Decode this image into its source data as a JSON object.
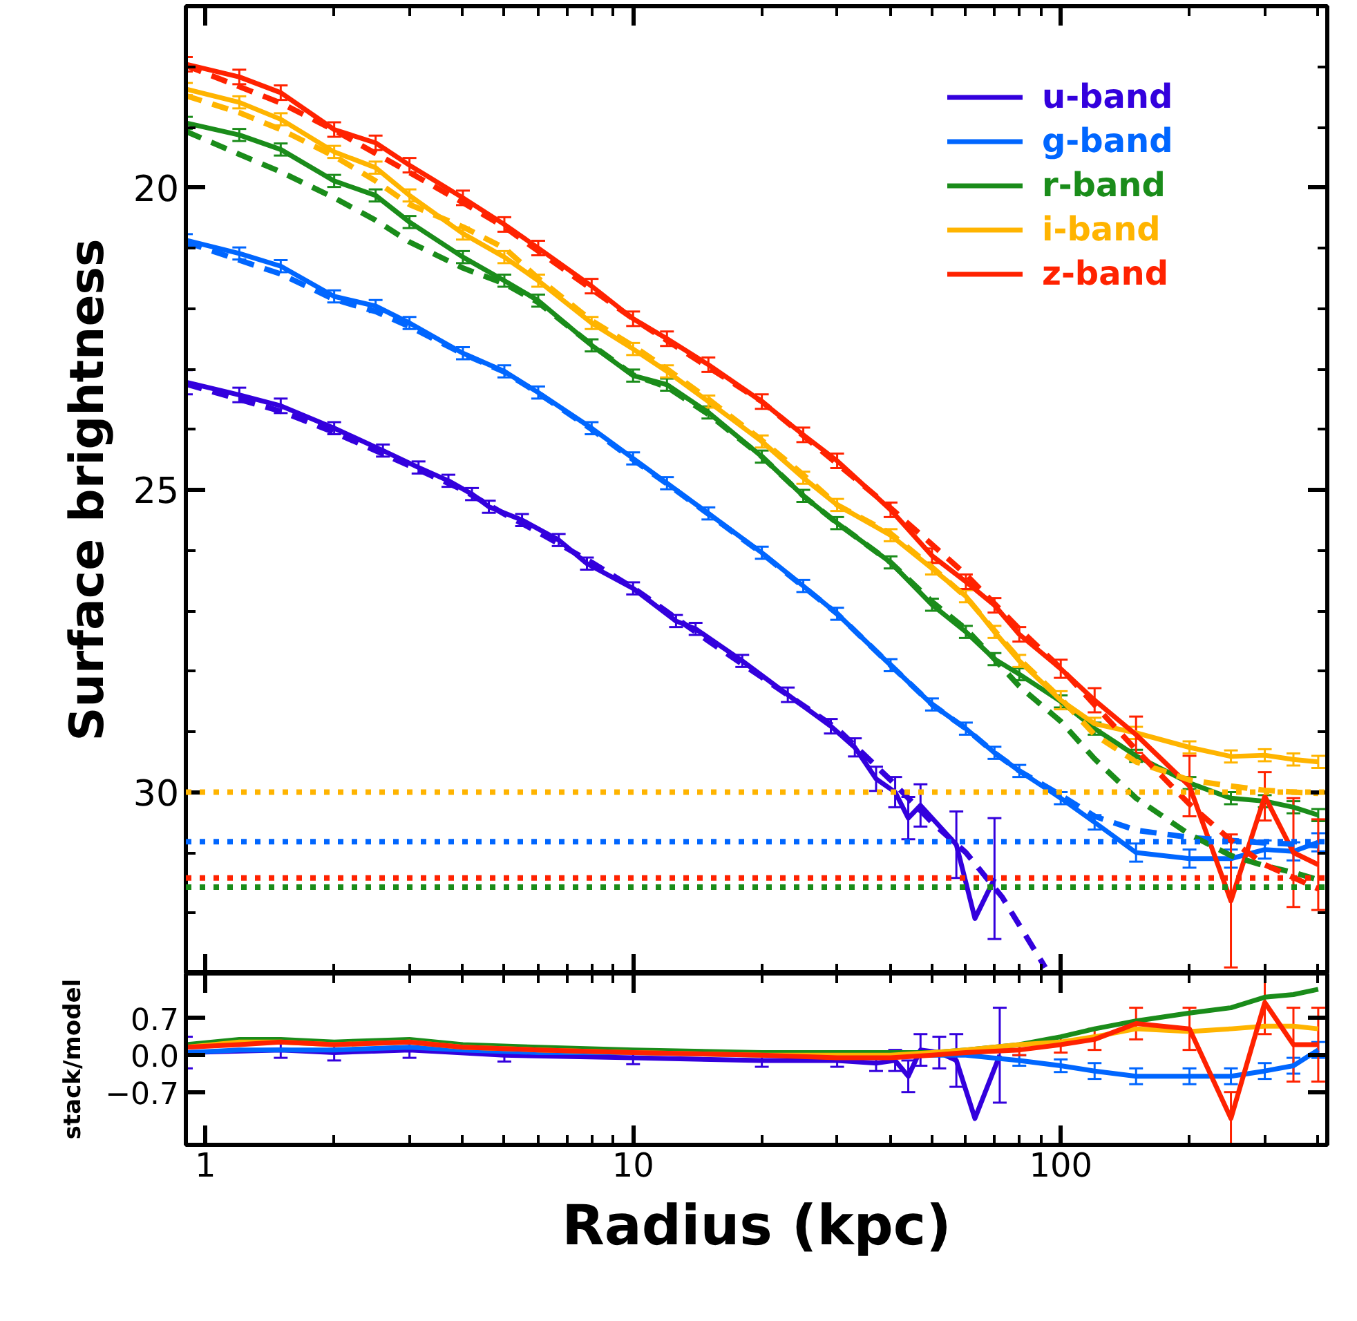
{
  "chart_data": [
    {
      "type": "line",
      "ylabel": "Surface brightness",
      "log": "x",
      "grid": false,
      "legend": "top right",
      "marker": "none",
      "tick_labels": "y",
      "xlim": [
        0.9,
        420
      ],
      "ylim": [
        33,
        17
      ],
      "xticks": [
        1,
        {
          "value": 2,
          "label": null
        },
        {
          "value": 3,
          "label": null
        },
        {
          "value": 4,
          "label": null
        },
        {
          "value": 5,
          "label": null
        },
        {
          "value": 6,
          "label": null
        },
        {
          "value": 7,
          "label": null
        },
        {
          "value": 8,
          "label": null
        },
        {
          "value": 9,
          "label": null
        },
        10,
        {
          "value": 20,
          "label": null
        },
        {
          "value": 30,
          "label": null
        },
        {
          "value": 40,
          "label": null
        },
        {
          "value": 50,
          "label": null
        },
        {
          "value": 60,
          "label": null
        },
        {
          "value": 70,
          "label": null
        },
        {
          "value": 80,
          "label": null
        },
        {
          "value": 90,
          "label": null
        },
        100,
        {
          "value": 200,
          "label": null
        },
        {
          "value": 300,
          "label": null
        },
        {
          "value": 400,
          "label": null
        }
      ],
      "yticks": [
        {
          "value": 18,
          "label": null
        },
        {
          "value": 19,
          "label": null
        },
        20,
        {
          "value": 21,
          "label": null
        },
        {
          "value": 22,
          "label": null
        },
        {
          "value": 23,
          "label": null
        },
        {
          "value": 24,
          "label": null
        },
        25,
        {
          "value": 26,
          "label": null
        },
        {
          "value": 27,
          "label": null
        },
        {
          "value": 28,
          "label": null
        },
        {
          "value": 29,
          "label": null
        },
        30,
        {
          "value": 31,
          "label": null
        },
        {
          "value": 32,
          "label": null
        }
      ],
      "ref_lines": [
        {
          "axis": "y",
          "value": 30.0,
          "color": "#ffb400",
          "line_style": "dotted"
        },
        {
          "axis": "y",
          "value": 30.82,
          "color": "#0066ff",
          "line_style": "dotted"
        },
        {
          "axis": "y",
          "value": 31.42,
          "color": "#ff2200",
          "line_style": "dotted"
        },
        {
          "axis": "y",
          "value": 31.57,
          "color": "#1a8c1a",
          "line_style": "dotted"
        }
      ],
      "series": [
        {
          "name": "u-band",
          "color": "#3300dd",
          "line_style": "solid",
          "x": [
            0.9,
            1.2,
            1.5,
            2,
            2.6,
            3.15,
            3.7,
            4.2,
            4.6,
            5.5,
            6.7,
            7.8,
            10,
            12.6,
            14,
            18,
            23,
            29,
            33,
            37,
            41,
            44,
            47,
            57,
            63,
            70
          ],
          "values": [
            23.22,
            23.43,
            23.61,
            23.98,
            24.35,
            24.63,
            24.85,
            25.07,
            25.28,
            25.5,
            25.83,
            26.22,
            26.63,
            27.17,
            27.3,
            27.83,
            28.39,
            28.91,
            29.26,
            29.78,
            30.0,
            30.43,
            30.22,
            30.87,
            32.09,
            31.43
          ],
          "errors": [
            0.2,
            0.12,
            0.12,
            0.1,
            0.1,
            0.1,
            0.1,
            0.1,
            0.1,
            0.1,
            0.1,
            0.1,
            0.1,
            0.1,
            0.1,
            0.1,
            0.12,
            0.12,
            0.15,
            0.2,
            0.25,
            0.35,
            0.35,
            0.55,
            null,
            1.0
          ]
        },
        {
          "name": "g-band",
          "color": "#0066ff",
          "line_style": "solid",
          "x": [
            0.9,
            1.2,
            1.5,
            2,
            2.5,
            3,
            4,
            5,
            6,
            8,
            10,
            12,
            15,
            20,
            25,
            30,
            40,
            50,
            60,
            70,
            80,
            100,
            120,
            150,
            200,
            250,
            300,
            350,
            400
          ],
          "values": [
            20.87,
            21.09,
            21.3,
            21.8,
            21.96,
            22.24,
            22.74,
            23.04,
            23.39,
            23.98,
            24.48,
            24.89,
            25.39,
            26.04,
            26.59,
            27.05,
            27.9,
            28.55,
            28.95,
            29.35,
            29.65,
            30.1,
            30.5,
            31.0,
            31.1,
            31.1,
            30.95,
            30.98,
            30.83
          ],
          "errors": [
            0.1,
            0.1,
            0.1,
            0.1,
            0.1,
            0.1,
            0.1,
            0.1,
            0.1,
            0.1,
            0.1,
            0.1,
            0.1,
            0.1,
            0.1,
            0.1,
            0.1,
            0.1,
            0.1,
            0.1,
            0.1,
            0.1,
            0.12,
            0.15,
            0.15,
            0.15,
            0.15,
            0.15,
            0.15
          ]
        },
        {
          "name": "r-band",
          "color": "#1a8c1a",
          "line_style": "solid",
          "x": [
            0.9,
            1.2,
            1.5,
            2,
            2.5,
            3,
            4,
            5,
            6,
            8,
            10,
            12,
            15,
            20,
            25,
            30,
            40,
            50,
            60,
            70,
            80,
            100,
            120,
            150,
            200,
            250,
            300,
            350,
            400
          ],
          "values": [
            18.93,
            19.13,
            19.37,
            19.89,
            20.13,
            20.57,
            21.15,
            21.54,
            21.87,
            22.61,
            23.11,
            23.26,
            23.72,
            24.45,
            25.1,
            25.55,
            26.2,
            26.9,
            27.35,
            27.8,
            28.05,
            28.5,
            28.95,
            29.4,
            29.85,
            30.1,
            30.15,
            30.25,
            30.38
          ],
          "errors": [
            0.1,
            0.1,
            0.1,
            0.1,
            0.1,
            0.1,
            0.1,
            0.1,
            0.1,
            0.1,
            0.1,
            0.1,
            0.1,
            0.1,
            0.1,
            0.1,
            0.1,
            0.1,
            0.1,
            0.1,
            0.1,
            0.1,
            0.1,
            0.1,
            0.1,
            0.1,
            0.1,
            0.1,
            0.1
          ]
        },
        {
          "name": "i-band",
          "color": "#ffb400",
          "line_style": "solid",
          "x": [
            0.9,
            1.2,
            1.5,
            2,
            2.5,
            3,
            4,
            5,
            6,
            8,
            10,
            12,
            15,
            20,
            25,
            30,
            40,
            50,
            60,
            70,
            80,
            100,
            120,
            150,
            200,
            250,
            300,
            350,
            400
          ],
          "values": [
            18.37,
            18.59,
            18.87,
            19.41,
            19.67,
            20.13,
            20.76,
            21.15,
            21.54,
            22.24,
            22.67,
            23.04,
            23.54,
            24.2,
            24.8,
            25.25,
            25.75,
            26.3,
            26.76,
            27.35,
            27.83,
            28.48,
            28.87,
            29.02,
            29.26,
            29.41,
            29.39,
            29.46,
            29.5
          ],
          "errors": [
            0.1,
            0.1,
            0.1,
            0.1,
            0.1,
            0.1,
            0.1,
            0.1,
            0.1,
            0.1,
            0.1,
            0.1,
            0.1,
            0.1,
            0.1,
            0.1,
            0.1,
            0.1,
            0.1,
            0.1,
            0.1,
            0.15,
            0.1,
            0.1,
            0.1,
            0.1,
            0.1,
            0.1,
            0.1
          ]
        },
        {
          "name": "z-band",
          "color": "#ff2200",
          "line_style": "solid",
          "x": [
            0.9,
            1.2,
            1.5,
            2,
            2.5,
            3,
            4,
            5,
            6,
            8,
            10,
            12,
            15,
            20,
            25,
            30,
            40,
            50,
            60,
            70,
            80,
            100,
            120,
            150,
            200,
            250,
            300,
            350,
            400
          ],
          "values": [
            17.96,
            18.17,
            18.43,
            19.04,
            19.26,
            19.63,
            20.17,
            20.61,
            21.0,
            21.63,
            22.17,
            22.5,
            22.93,
            23.54,
            24.09,
            24.52,
            25.33,
            26.09,
            26.52,
            26.91,
            27.39,
            27.96,
            28.48,
            29.05,
            29.9,
            31.8,
            30.07,
            31.0,
            31.2
          ],
          "errors": [
            0.12,
            0.12,
            0.12,
            0.12,
            0.12,
            0.12,
            0.12,
            0.12,
            0.12,
            0.12,
            0.12,
            0.12,
            0.12,
            0.12,
            0.12,
            0.12,
            0.12,
            0.12,
            0.12,
            0.12,
            0.12,
            0.15,
            0.2,
            0.3,
            0.5,
            1.1,
            0.4,
            0.9,
            0.75
          ]
        },
        {
          "color": "#3300dd",
          "line_style": "dashed",
          "x": [
            0.9,
            1.5,
            2,
            3,
            4,
            5,
            6,
            8,
            10,
            15,
            20,
            30,
            40,
            50,
            60,
            73,
            92
          ],
          "values": [
            23.25,
            23.7,
            24.05,
            24.6,
            25.0,
            25.4,
            25.7,
            26.2,
            26.62,
            27.5,
            28.1,
            28.95,
            29.8,
            30.5,
            31.0,
            31.74,
            32.9
          ]
        },
        {
          "color": "#0066ff",
          "line_style": "dashed",
          "x": [
            0.9,
            1.2,
            1.5,
            2,
            2.5,
            3,
            4,
            5,
            6,
            8,
            10,
            12,
            15,
            20,
            25,
            30,
            40,
            50,
            60,
            70,
            80,
            100,
            120,
            150,
            200,
            250,
            300,
            350,
            400
          ],
          "values": [
            20.9,
            21.2,
            21.43,
            21.85,
            22.05,
            22.3,
            22.75,
            23.05,
            23.4,
            24.0,
            24.5,
            24.9,
            25.4,
            26.05,
            26.6,
            27.05,
            27.9,
            28.55,
            28.95,
            29.35,
            29.65,
            30.05,
            30.4,
            30.63,
            30.75,
            30.8,
            30.84,
            30.86,
            30.89
          ]
        },
        {
          "color": "#1a8c1a",
          "line_style": "dashed",
          "x": [
            0.9,
            1.2,
            1.5,
            2,
            2.5,
            3,
            4,
            5,
            6,
            8,
            10,
            12,
            15,
            20,
            25,
            30,
            40,
            50,
            60,
            70,
            80,
            100,
            120,
            150,
            200,
            250,
            300,
            350,
            400
          ],
          "values": [
            19.07,
            19.45,
            19.74,
            20.17,
            20.54,
            20.9,
            21.33,
            21.59,
            21.9,
            22.6,
            23.1,
            23.3,
            23.75,
            24.45,
            25.1,
            25.55,
            26.2,
            26.85,
            27.3,
            27.8,
            28.25,
            28.83,
            29.45,
            30.1,
            30.7,
            31.05,
            31.22,
            31.33,
            31.45
          ]
        },
        {
          "color": "#ffb400",
          "line_style": "dashed",
          "x": [
            0.9,
            1.2,
            1.5,
            2,
            2.5,
            3,
            4,
            5,
            6,
            8,
            10,
            12,
            15,
            20,
            25,
            30,
            40,
            50,
            60,
            70,
            80,
            100,
            120,
            150,
            200,
            250,
            300,
            350,
            400
          ],
          "values": [
            18.48,
            18.76,
            19.04,
            19.48,
            19.89,
            20.28,
            20.65,
            21.0,
            21.5,
            22.2,
            22.62,
            23.0,
            23.5,
            24.18,
            24.75,
            25.25,
            25.72,
            26.28,
            26.77,
            27.33,
            27.8,
            28.45,
            29.05,
            29.5,
            29.8,
            29.9,
            29.97,
            30.0,
            30.02
          ]
        },
        {
          "color": "#ff2200",
          "line_style": "dashed",
          "x": [
            0.9,
            1.2,
            1.5,
            2,
            3,
            4,
            5,
            10,
            20,
            40,
            60,
            80,
            100,
            150,
            200,
            250,
            300,
            400
          ],
          "values": [
            17.98,
            18.33,
            18.6,
            19.05,
            19.75,
            20.25,
            20.65,
            22.17,
            23.54,
            25.3,
            26.4,
            27.3,
            27.95,
            29.3,
            30.2,
            30.8,
            31.2,
            31.6
          ]
        }
      ]
    },
    {
      "type": "line",
      "xlabel": "Radius (kpc)",
      "ylabel": "stack/model",
      "log": "x",
      "grid": false,
      "marker": "none",
      "xlim": [
        0.9,
        420
      ],
      "ylim": [
        -1.7,
        1.55
      ],
      "xticks": [
        1,
        {
          "value": 2,
          "label": null
        },
        {
          "value": 3,
          "label": null
        },
        {
          "value": 4,
          "label": null
        },
        {
          "value": 5,
          "label": null
        },
        {
          "value": 6,
          "label": null
        },
        {
          "value": 7,
          "label": null
        },
        {
          "value": 8,
          "label": null
        },
        {
          "value": 9,
          "label": null
        },
        10,
        {
          "value": 20,
          "label": null
        },
        {
          "value": 30,
          "label": null
        },
        {
          "value": 40,
          "label": null
        },
        {
          "value": 50,
          "label": null
        },
        {
          "value": 60,
          "label": null
        },
        {
          "value": 70,
          "label": null
        },
        {
          "value": 80,
          "label": null
        },
        {
          "value": 90,
          "label": null
        },
        100,
        {
          "value": 200,
          "label": null
        },
        {
          "value": 300,
          "label": null
        },
        {
          "value": 400,
          "label": null
        }
      ],
      "yticks": [
        {
          "value": -0.7,
          "label": "−0.7"
        },
        {
          "value": 0,
          "label": "0.0"
        },
        0.7
      ],
      "series": [
        {
          "color": "#3300dd",
          "x": [
            0.9,
            1.5,
            2,
            3,
            5,
            10,
            20,
            30,
            37,
            41,
            44,
            47,
            52,
            57,
            63,
            72
          ],
          "values": [
            0.05,
            0.1,
            0.05,
            0.1,
            0.0,
            -0.05,
            -0.1,
            -0.1,
            -0.15,
            -0.1,
            -0.4,
            0.1,
            0.05,
            -0.1,
            -1.2,
            0.0
          ],
          "errors": [
            0.3,
            0.15,
            0.15,
            0.15,
            0.12,
            0.12,
            0.12,
            0.12,
            0.15,
            0.2,
            0.3,
            0.3,
            0.3,
            0.5,
            null,
            0.9
          ]
        },
        {
          "color": "#0066ff",
          "x": [
            0.9,
            1.2,
            1.5,
            2,
            3,
            4,
            6,
            10,
            20,
            30,
            40,
            50,
            60,
            80,
            100,
            120,
            150,
            200,
            250,
            300,
            350,
            400
          ],
          "values": [
            0.05,
            0.1,
            0.1,
            0.1,
            0.15,
            0.1,
            0.05,
            0.05,
            0.0,
            0.0,
            0.0,
            0.0,
            0.0,
            -0.1,
            -0.2,
            -0.3,
            -0.4,
            -0.4,
            -0.4,
            -0.3,
            -0.2,
            0.1
          ],
          "errors": [
            null,
            null,
            null,
            null,
            null,
            null,
            null,
            null,
            null,
            null,
            null,
            null,
            null,
            0.1,
            0.12,
            0.15,
            0.15,
            0.15,
            0.15,
            0.15,
            0.15,
            0.15
          ]
        },
        {
          "color": "#1a8c1a",
          "x": [
            0.9,
            1.2,
            1.5,
            2,
            3,
            4,
            6,
            10,
            20,
            30,
            40,
            50,
            60,
            80,
            100,
            120,
            150,
            200,
            250,
            300,
            350,
            400
          ],
          "values": [
            0.2,
            0.3,
            0.3,
            0.25,
            0.3,
            0.2,
            0.15,
            0.1,
            0.05,
            0.05,
            0.05,
            0.05,
            0.1,
            0.2,
            0.35,
            0.5,
            0.65,
            0.8,
            0.9,
            1.1,
            1.15,
            1.25
          ]
        },
        {
          "color": "#ffb400",
          "x": [
            0.9,
            1.2,
            1.5,
            2,
            3,
            4,
            6,
            10,
            20,
            30,
            40,
            50,
            60,
            80,
            100,
            120,
            150,
            200,
            250,
            300,
            350,
            400
          ],
          "values": [
            0.15,
            0.25,
            0.25,
            0.2,
            0.25,
            0.15,
            0.1,
            0.05,
            0.0,
            0.0,
            0.0,
            0.05,
            0.1,
            0.2,
            0.25,
            0.35,
            0.5,
            0.45,
            0.5,
            0.55,
            0.55,
            0.5
          ]
        },
        {
          "color": "#ff2200",
          "x": [
            0.9,
            1.2,
            1.5,
            2,
            3,
            4,
            6,
            10,
            20,
            30,
            40,
            50,
            60,
            80,
            100,
            120,
            150,
            200,
            250,
            300,
            350,
            400
          ],
          "values": [
            0.15,
            0.2,
            0.25,
            0.2,
            0.25,
            0.15,
            0.1,
            0.05,
            0.0,
            -0.05,
            -0.05,
            0.0,
            0.05,
            0.1,
            0.2,
            0.3,
            0.6,
            0.5,
            -1.2,
            1.0,
            0.2,
            0.2
          ],
          "errors": [
            null,
            null,
            null,
            null,
            null,
            null,
            null,
            null,
            null,
            null,
            null,
            null,
            null,
            0.1,
            0.15,
            0.2,
            0.3,
            0.4,
            0.5,
            0.6,
            0.7,
            0.7
          ]
        }
      ]
    }
  ]
}
